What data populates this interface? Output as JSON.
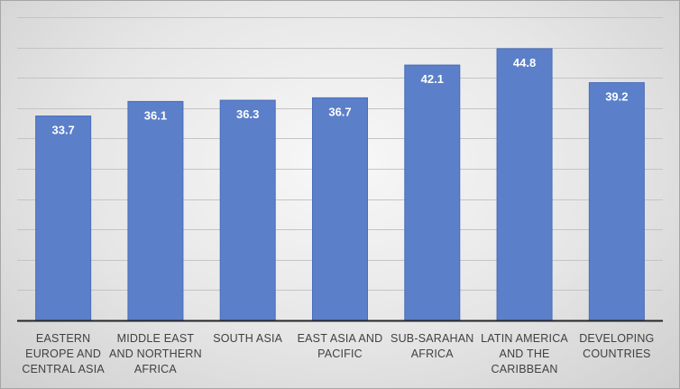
{
  "colors": {
    "bar": "#5b7fc9",
    "bar_stroke": "#4a6dba",
    "gridline": "#c4c4c4",
    "axis": "#262626",
    "value_label": "#ffffff",
    "category_label": "#404040"
  },
  "chart_data": {
    "type": "bar",
    "title": "",
    "xlabel": "",
    "ylabel": "",
    "ylim": [
      0,
      50
    ],
    "grid": true,
    "legend": "none",
    "categories": [
      [
        "EASTERN",
        "EUROPE AND",
        "CENTRAL ASIA"
      ],
      [
        "MIDDLE EAST",
        "AND NORTHERN",
        "AFRICA"
      ],
      [
        "SOUTH ASIA"
      ],
      [
        "EAST ASIA AND",
        "PACIFIC"
      ],
      [
        "SUB-SARAHAN",
        "AFRICA"
      ],
      [
        "LATIN AMERICA",
        "AND THE",
        "CARIBBEAN"
      ],
      [
        "DEVELOPING",
        "COUNTRIES"
      ]
    ],
    "values": [
      33.7,
      36.1,
      36.3,
      36.7,
      42.1,
      44.8,
      39.2
    ],
    "value_labels": [
      "33.7",
      "36.1",
      "36.3",
      "36.7",
      "42.1",
      "44.8",
      "39.2"
    ]
  }
}
